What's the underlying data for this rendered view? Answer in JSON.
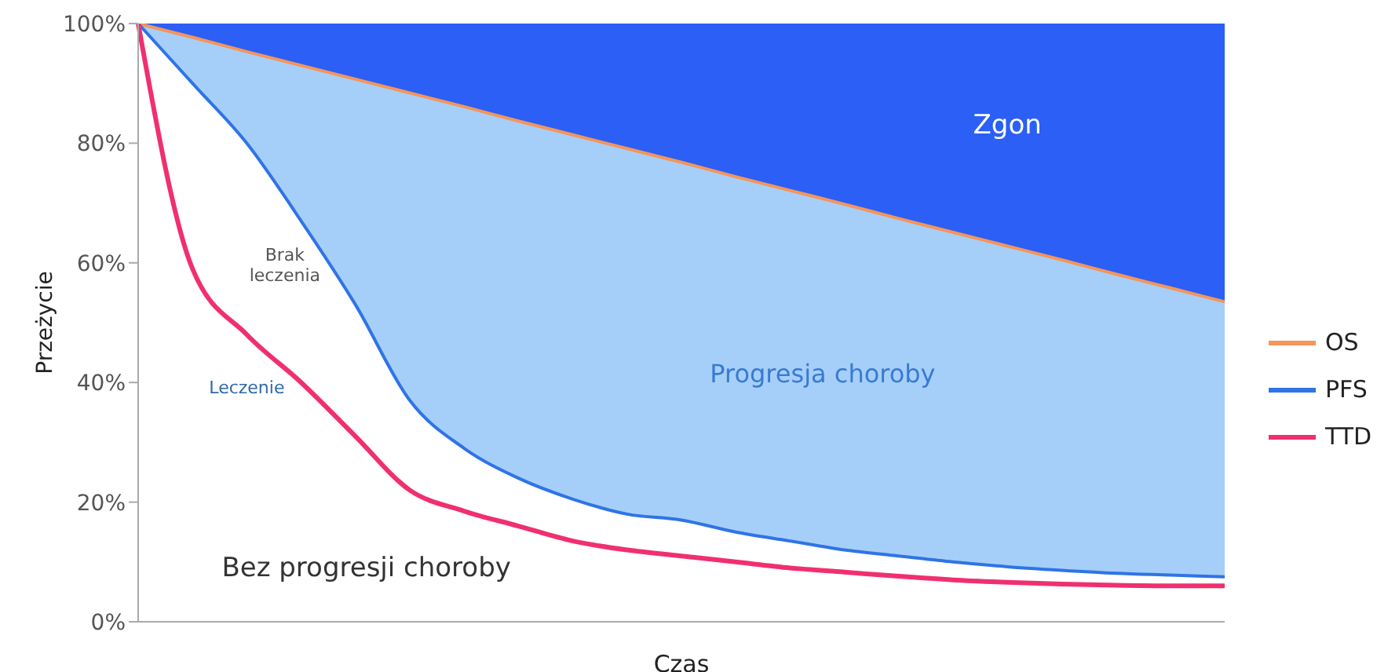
{
  "chart_data": {
    "type": "line",
    "xlabel": "Czas",
    "ylabel": "Przeżycie",
    "categories": [
      null,
      null,
      null,
      null,
      null,
      null,
      null,
      null,
      null,
      null,
      null,
      null,
      null,
      null,
      null,
      null,
      null,
      null,
      null,
      null,
      null
    ],
    "ylim": [
      0,
      100
    ],
    "yticks": [
      {
        "value": 0,
        "label": "0%"
      },
      {
        "value": 20,
        "label": "20%"
      },
      {
        "value": 40,
        "label": "40%"
      },
      {
        "value": 60,
        "label": "60%"
      },
      {
        "value": 80,
        "label": "80%"
      },
      {
        "value": 100,
        "label": "100%"
      }
    ],
    "tick_labels": "y",
    "legend": "right",
    "marker": "none",
    "series": [
      {
        "name": "OS",
        "color": "#f5955a",
        "values": [
          100,
          97.7,
          95.3,
          93,
          90.7,
          88.4,
          86.1,
          83.7,
          81.4,
          79.1,
          76.8,
          74.4,
          72.1,
          69.8,
          67.4,
          65.1,
          62.8,
          60.5,
          58.1,
          55.8,
          53.5
        ]
      },
      {
        "name": "PFS",
        "color": "#2f74e6",
        "values": [
          100,
          90,
          80,
          67,
          53,
          37,
          29,
          24,
          20.5,
          18,
          17,
          15,
          13.5,
          12,
          11,
          10,
          9.2,
          8.6,
          8.1,
          7.8,
          7.5
        ]
      },
      {
        "name": "TTD",
        "color": "#f0306e",
        "values": [
          100,
          59,
          48,
          40,
          31,
          22,
          18.5,
          16,
          13.5,
          12,
          11,
          10,
          9,
          8.3,
          7.6,
          7,
          6.6,
          6.3,
          6.1,
          6,
          6
        ]
      }
    ],
    "annotations": [
      "Zgon",
      "Progresja choroby",
      "Bez progresji choroby",
      "Brak leczenia",
      "Leczenie"
    ]
  }
}
